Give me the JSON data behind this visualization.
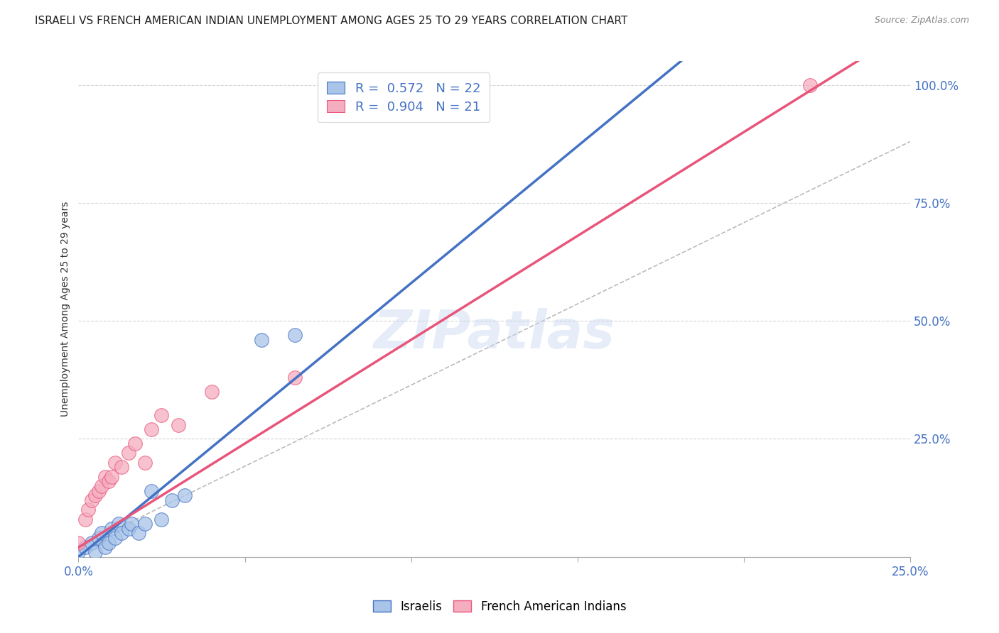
{
  "title": "ISRAELI VS FRENCH AMERICAN INDIAN UNEMPLOYMENT AMONG AGES 25 TO 29 YEARS CORRELATION CHART",
  "source": "Source: ZipAtlas.com",
  "ylabel": "Unemployment Among Ages 25 to 29 years",
  "xlim": [
    0.0,
    0.25
  ],
  "ylim": [
    0.0,
    1.05
  ],
  "x_ticks": [
    0.0,
    0.05,
    0.1,
    0.15,
    0.2,
    0.25
  ],
  "y_ticks": [
    0.0,
    0.25,
    0.5,
    0.75,
    1.0
  ],
  "israeli_R": 0.572,
  "israeli_N": 22,
  "french_R": 0.904,
  "french_N": 21,
  "israeli_color": "#a8c4e8",
  "french_color": "#f5adc0",
  "israeli_line_color": "#4472c4",
  "french_line_color": "#e8557a",
  "watermark": "ZIPatlas",
  "israeli_x": [
    0.0,
    0.002,
    0.004,
    0.005,
    0.006,
    0.007,
    0.008,
    0.009,
    0.01,
    0.011,
    0.012,
    0.013,
    0.015,
    0.016,
    0.018,
    0.02,
    0.022,
    0.025,
    0.028,
    0.032,
    0.055,
    0.065
  ],
  "israeli_y": [
    0.01,
    0.02,
    0.03,
    0.01,
    0.04,
    0.05,
    0.02,
    0.03,
    0.06,
    0.04,
    0.07,
    0.05,
    0.06,
    0.07,
    0.05,
    0.07,
    0.14,
    0.08,
    0.12,
    0.13,
    0.46,
    0.47
  ],
  "french_x": [
    0.0,
    0.002,
    0.003,
    0.004,
    0.005,
    0.006,
    0.007,
    0.008,
    0.009,
    0.01,
    0.011,
    0.013,
    0.015,
    0.017,
    0.02,
    0.022,
    0.025,
    0.03,
    0.04,
    0.065,
    0.22
  ],
  "french_y": [
    0.03,
    0.08,
    0.1,
    0.12,
    0.13,
    0.14,
    0.15,
    0.17,
    0.16,
    0.17,
    0.2,
    0.19,
    0.22,
    0.24,
    0.2,
    0.27,
    0.3,
    0.28,
    0.35,
    0.38,
    1.0
  ],
  "grid_color": "#cccccc",
  "background_color": "#ffffff",
  "title_fontsize": 11,
  "label_fontsize": 10,
  "tick_color": "#4472c4",
  "israeli_line_intercept": 0.0,
  "israeli_line_slope": 5.8,
  "french_line_intercept": 0.02,
  "french_line_slope": 4.4
}
